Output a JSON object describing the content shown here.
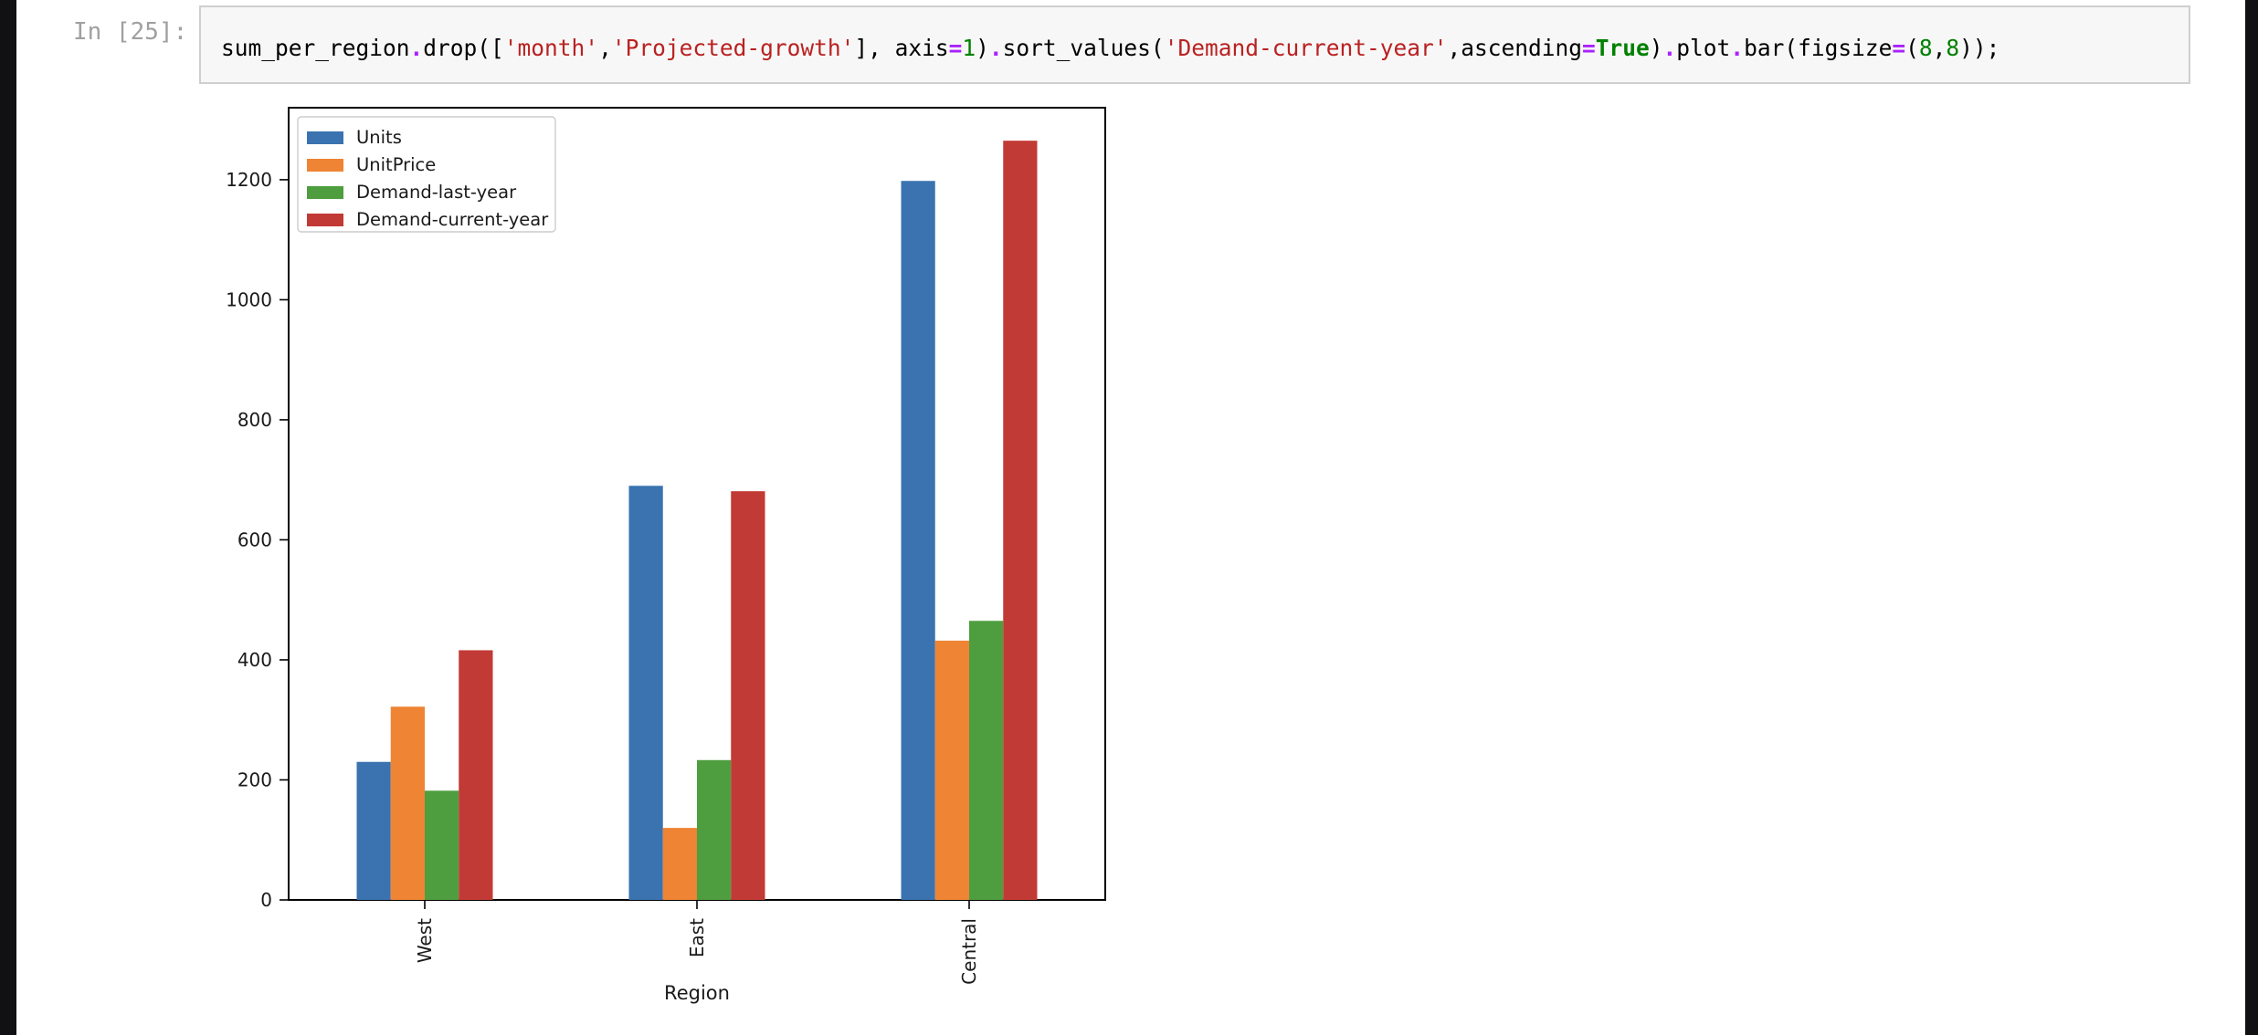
{
  "cell": {
    "prompt": "In [25]:",
    "code_tokens": [
      {
        "t": "sum_per_region",
        "k": "text"
      },
      {
        "t": ".",
        "k": "op"
      },
      {
        "t": "drop([",
        "k": "text"
      },
      {
        "t": "'month'",
        "k": "str"
      },
      {
        "t": ",",
        "k": "text"
      },
      {
        "t": "'Projected-growth'",
        "k": "str"
      },
      {
        "t": "], axis",
        "k": "text"
      },
      {
        "t": "=",
        "k": "op"
      },
      {
        "t": "1",
        "k": "num"
      },
      {
        "t": ")",
        "k": "text"
      },
      {
        "t": ".",
        "k": "op"
      },
      {
        "t": "sort_values(",
        "k": "text"
      },
      {
        "t": "'Demand-current-year'",
        "k": "str"
      },
      {
        "t": ",ascending",
        "k": "text"
      },
      {
        "t": "=",
        "k": "op"
      },
      {
        "t": "True",
        "k": "kw"
      },
      {
        "t": ")",
        "k": "text"
      },
      {
        "t": ".",
        "k": "op"
      },
      {
        "t": "plot",
        "k": "text"
      },
      {
        "t": ".",
        "k": "op"
      },
      {
        "t": "bar(figsize",
        "k": "text"
      },
      {
        "t": "=",
        "k": "op"
      },
      {
        "t": "(",
        "k": "text"
      },
      {
        "t": "8",
        "k": "num"
      },
      {
        "t": ",",
        "k": "text"
      },
      {
        "t": "8",
        "k": "num"
      },
      {
        "t": "));",
        "k": "text"
      }
    ]
  },
  "chart_data": {
    "type": "bar",
    "categories": [
      "West",
      "East",
      "Central"
    ],
    "series": [
      {
        "name": "Units",
        "color": "#3a73b0",
        "values": [
          230,
          690,
          1198
        ]
      },
      {
        "name": "UnitPrice",
        "color": "#ee8434",
        "values": [
          322,
          120,
          432
        ]
      },
      {
        "name": "Demand-last-year",
        "color": "#4e9e3f",
        "values": [
          182,
          233,
          465
        ]
      },
      {
        "name": "Demand-current-year",
        "color": "#c23a35",
        "values": [
          416,
          681,
          1265
        ]
      }
    ],
    "xlabel": "Region",
    "ylabel": "",
    "ylim": [
      0,
      1320
    ],
    "yticks": [
      0,
      200,
      400,
      600,
      800,
      1000,
      1200
    ],
    "legend_position": "top-left",
    "grid": false
  }
}
